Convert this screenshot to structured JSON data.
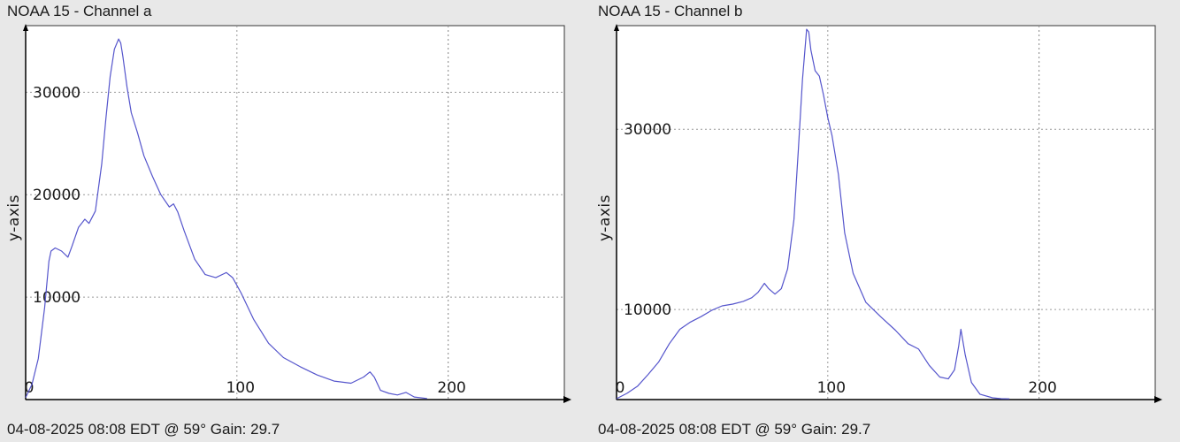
{
  "colors": {
    "background": "#e8e8e8",
    "plot_bg": "#ffffff",
    "line": "#5555cc",
    "grid": "#9a9a9a",
    "axis": "#000000"
  },
  "chart_data": [
    {
      "type": "line",
      "title": "NOAA 15 - Channel a",
      "footer": "04-08-2025 08:08 EDT @ 59° Gain: 29.7",
      "ylabel": "y-axis",
      "xlim": [
        0,
        255
      ],
      "ylim": [
        0,
        36500
      ],
      "grid": true,
      "xticks": [
        0,
        100,
        200
      ],
      "yticks": [
        10000,
        20000,
        30000
      ],
      "xtick_labels": [
        "0",
        "100",
        "200"
      ],
      "ytick_labels": [
        "10000",
        "20000",
        "30000"
      ],
      "x": [
        0,
        3,
        6,
        9,
        11,
        12,
        14,
        17,
        20,
        22,
        25,
        28,
        30,
        33,
        36,
        38,
        40,
        42,
        44,
        45,
        46,
        48,
        50,
        53,
        56,
        60,
        64,
        68,
        70,
        72,
        75,
        80,
        85,
        90,
        95,
        98,
        102,
        108,
        115,
        122,
        130,
        138,
        146,
        154,
        160,
        163,
        165,
        168,
        172,
        176,
        180,
        184,
        190
      ],
      "y": [
        200,
        1500,
        4000,
        9000,
        13500,
        14500,
        14800,
        14500,
        13900,
        15000,
        16800,
        17600,
        17200,
        18400,
        23000,
        27500,
        31500,
        34200,
        35200,
        34800,
        33500,
        30500,
        28000,
        26000,
        23800,
        21800,
        20000,
        18800,
        19100,
        18300,
        16500,
        13700,
        12200,
        11900,
        12400,
        11900,
        10400,
        7800,
        5500,
        4100,
        3200,
        2400,
        1800,
        1600,
        2200,
        2700,
        2200,
        900,
        600,
        450,
        700,
        250,
        100
      ]
    },
    {
      "type": "line",
      "title": "NOAA 15 - Channel b",
      "footer": "04-08-2025 08:08 EDT @ 59° Gain: 29.7",
      "ylabel": "y-axis",
      "xlim": [
        0,
        255
      ],
      "ylim": [
        0,
        41500
      ],
      "grid": true,
      "xticks": [
        0,
        100,
        200
      ],
      "yticks": [
        10000,
        30000
      ],
      "xtick_labels": [
        "0",
        "100",
        "200"
      ],
      "ytick_labels": [
        "10000",
        "30000"
      ],
      "x": [
        0,
        5,
        10,
        15,
        20,
        25,
        30,
        35,
        40,
        45,
        50,
        55,
        60,
        64,
        67,
        70,
        72,
        75,
        78,
        81,
        84,
        86,
        88,
        90,
        91,
        92,
        94,
        96,
        98,
        100,
        102,
        105,
        108,
        112,
        118,
        125,
        132,
        138,
        143,
        148,
        153,
        157,
        160,
        162,
        163,
        165,
        168,
        172,
        178,
        182,
        186
      ],
      "y": [
        100,
        700,
        1500,
        2800,
        4200,
        6200,
        7800,
        8600,
        9200,
        9900,
        10400,
        10600,
        10900,
        11300,
        11900,
        12900,
        12300,
        11700,
        12300,
        14500,
        20000,
        27500,
        35500,
        41100,
        40800,
        38800,
        36500,
        35900,
        33800,
        31300,
        29300,
        25000,
        18500,
        14000,
        10800,
        9200,
        7700,
        6200,
        5600,
        3800,
        2500,
        2300,
        3300,
        6000,
        7800,
        5000,
        1900,
        600,
        200,
        100,
        80
      ]
    }
  ]
}
